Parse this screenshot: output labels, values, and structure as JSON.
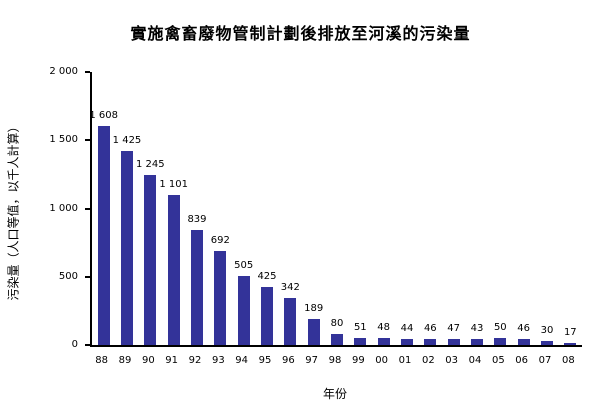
{
  "chart_data": {
    "type": "bar",
    "title": "實施禽畜廢物管制計劃後排放至河溪的污染量",
    "xlabel": "年份",
    "ylabel": "污染量（人口等值，以千人計算）",
    "categories": [
      "88",
      "89",
      "90",
      "91",
      "92",
      "93",
      "94",
      "95",
      "96",
      "97",
      "98",
      "99",
      "00",
      "01",
      "02",
      "03",
      "04",
      "05",
      "06",
      "07",
      "08"
    ],
    "values": [
      1608,
      1425,
      1245,
      1101,
      839,
      692,
      505,
      425,
      342,
      189,
      80,
      51,
      48,
      44,
      46,
      47,
      43,
      50,
      46,
      30,
      17
    ],
    "value_labels": [
      "1 608",
      "1 425",
      "1 245",
      "1 101",
      "839",
      "692",
      "505",
      "425",
      "342",
      "189",
      "80",
      "51",
      "48",
      "44",
      "46",
      "47",
      "43",
      "50",
      "46",
      "30",
      "17"
    ],
    "ylim": [
      0,
      2000
    ],
    "yticks": [
      0,
      500,
      1000,
      1500,
      2000
    ],
    "ytick_labels": [
      "0",
      "500",
      "1 000",
      "1 500",
      "2 000"
    ],
    "bar_color": "#333399",
    "grid": false,
    "legend": false
  }
}
